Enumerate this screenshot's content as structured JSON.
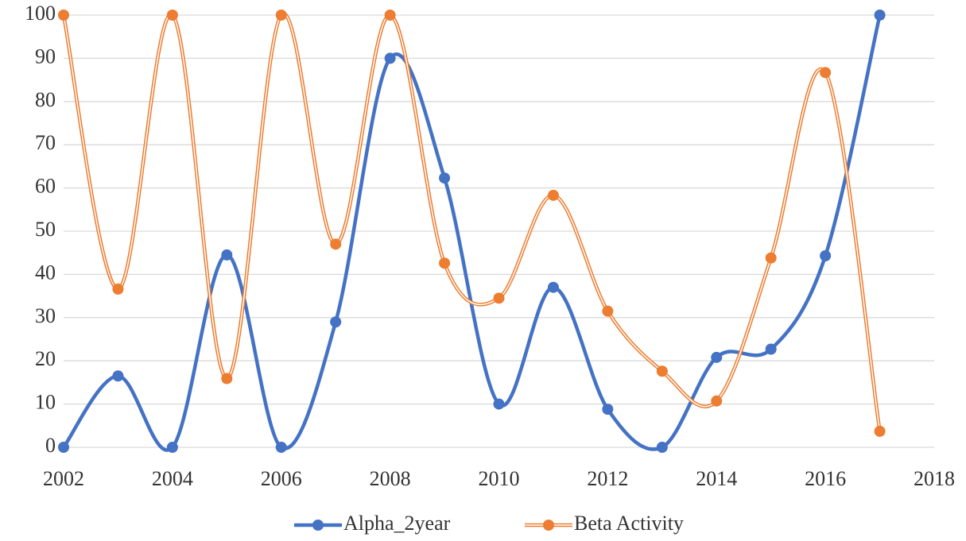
{
  "chart_data": {
    "type": "line",
    "smooth": true,
    "x": [
      2002,
      2003,
      2004,
      2005,
      2006,
      2007,
      2008,
      2009,
      2010,
      2011,
      2012,
      2013,
      2014,
      2015,
      2016,
      2017
    ],
    "series": [
      {
        "name": "Alpha_2year",
        "color": "#4472c4",
        "style": "solid",
        "values": [
          0,
          16.5,
          0,
          44.5,
          0,
          29,
          90,
          62.3,
          10,
          37,
          8.8,
          0,
          20.8,
          22.7,
          44.3,
          100
        ]
      },
      {
        "name": "Beta Activity",
        "color": "#ed7d31",
        "style": "double",
        "values": [
          100,
          36.6,
          100,
          15.9,
          100,
          47,
          100,
          42.6,
          34.5,
          58.3,
          31.5,
          17.6,
          10.7,
          43.8,
          86.7,
          3.7
        ]
      }
    ],
    "xlim": [
      2002,
      2018
    ],
    "xticks": [
      2002,
      2004,
      2006,
      2008,
      2010,
      2012,
      2014,
      2016,
      2018
    ],
    "ylim": [
      0,
      100
    ],
    "yticks": [
      0,
      10,
      20,
      30,
      40,
      50,
      60,
      70,
      80,
      90,
      100
    ],
    "grid": true,
    "legend": "bottom"
  }
}
